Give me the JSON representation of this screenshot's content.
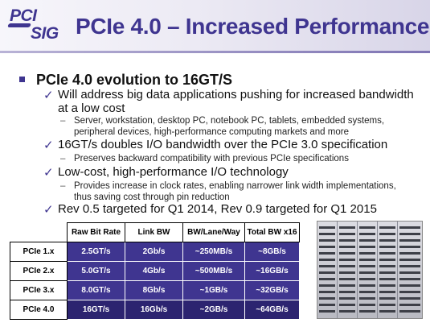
{
  "header": {
    "logo_top": "PCI",
    "logo_bottom": "SIG",
    "title": "PCIe 4.0 – Increased Performance"
  },
  "bullets": {
    "main": "PCIe 4.0 evolution to 16GT/S",
    "item1": "Will address big data applications pushing for increased bandwidth at a low cost",
    "item1_sub": "Server, workstation, desktop PC, notebook PC, tablets, embedded systems, peripheral devices, high-performance computing markets and more",
    "item2": "16GT/s doubles I/O bandwidth over the PCIe 3.0 specification",
    "item2_sub": "Preserves backward compatibility with previous PCIe specifications",
    "item3": "Low-cost, high-performance I/O technology",
    "item3_sub": "Provides increase in clock rates, enabling narrower link width implementations, thus saving cost through pin reduction",
    "item4": "Rev 0.5 targeted for Q1 2014, Rev 0.9 targeted for Q1 2015",
    "check_glyph": "✓",
    "dash_glyph": "–"
  },
  "table": {
    "headers": [
      "Raw Bit Rate",
      "Link BW",
      "BW/Lane/Way",
      "Total BW x16"
    ],
    "rows": [
      {
        "label": "PCIe 1.x",
        "cells": [
          "2.5GT/s",
          "2Gb/s",
          "~250MB/s",
          "~8GB/s"
        ]
      },
      {
        "label": "PCIe 2.x",
        "cells": [
          "5.0GT/s",
          "4Gb/s",
          "~500MB/s",
          "~16GB/s"
        ]
      },
      {
        "label": "PCIe 3.x",
        "cells": [
          "8.0GT/s",
          "8Gb/s",
          "~1GB/s",
          "~32GB/s"
        ]
      },
      {
        "label": "PCIe 4.0",
        "cells": [
          "16GT/s",
          "16Gb/s",
          "~2GB/s",
          "~64GB/s"
        ]
      }
    ]
  },
  "colors": {
    "accent": "#3f3590",
    "table_cell": "#3f3590"
  },
  "photo": {
    "icon": "server-racks-photo"
  }
}
